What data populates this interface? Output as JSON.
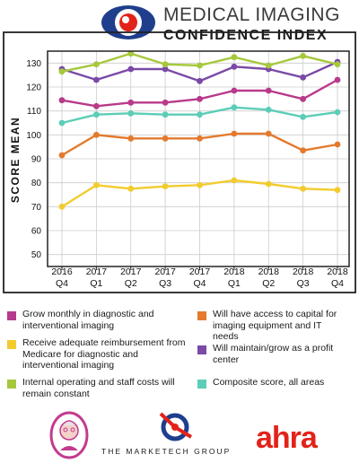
{
  "header": {
    "title_line1": "MEDICAL IMAGING",
    "title_line2": "CONFIDENCE INDEX"
  },
  "colors": {
    "frame": "#222222",
    "grid": "#cccccc",
    "brand_blue": "#1f3e8c",
    "brand_red": "#e2231a"
  },
  "chart_data": {
    "type": "line",
    "title": "",
    "xlabel": "",
    "ylabel": "SCORE MEAN",
    "ylim": [
      45,
      135
    ],
    "yticks": [
      50,
      60,
      70,
      80,
      90,
      100,
      110,
      120,
      130
    ],
    "grid": true,
    "legend": "bottom",
    "categories": [
      [
        "2016",
        "Q4"
      ],
      [
        "2017",
        "Q1"
      ],
      [
        "2017",
        "Q2"
      ],
      [
        "2017",
        "Q3"
      ],
      [
        "2017",
        "Q4"
      ],
      [
        "2018",
        "Q1"
      ],
      [
        "2018",
        "Q2"
      ],
      [
        "2018",
        "Q3"
      ],
      [
        "2018",
        "Q4"
      ]
    ],
    "series": [
      {
        "name": "Grow monthly in diagnostic and interventional imaging",
        "color": "#b83a8a",
        "values": [
          114.5,
          112.0,
          113.5,
          113.5,
          115.0,
          118.5,
          118.5,
          115.0,
          123.0
        ]
      },
      {
        "name": "Will have access to capital for imaging equipment and IT needs",
        "color": "#e37a2e",
        "values": [
          91.5,
          100.0,
          98.5,
          98.5,
          98.5,
          100.5,
          100.5,
          93.5,
          96.0
        ]
      },
      {
        "name": "Receive adequate reimbursement from Medicare for diagnostic and interventional imaging",
        "color": "#f2cc2e",
        "values": [
          70.0,
          79.0,
          77.5,
          78.5,
          79.0,
          81.0,
          79.5,
          77.5,
          77.0
        ]
      },
      {
        "name": "Will maintain/grow as a profit center",
        "color": "#7a4aa6",
        "values": [
          127.5,
          123.0,
          127.5,
          127.5,
          122.5,
          128.5,
          127.5,
          124.0,
          130.5
        ]
      },
      {
        "name": "Internal operating and staff costs will remain constant",
        "color": "#a6c83c",
        "values": [
          126.5,
          129.5,
          134.0,
          129.5,
          129.0,
          132.5,
          129.0,
          133.0,
          129.5
        ]
      },
      {
        "name": "Composite score, all areas",
        "color": "#5ccdb6",
        "values": [
          105.0,
          108.5,
          109.0,
          108.5,
          108.5,
          111.5,
          110.5,
          107.5,
          109.5
        ]
      }
    ]
  },
  "footer": {
    "company_text": "THE MARKETECH GROUP",
    "ahra_text": "ahra"
  }
}
